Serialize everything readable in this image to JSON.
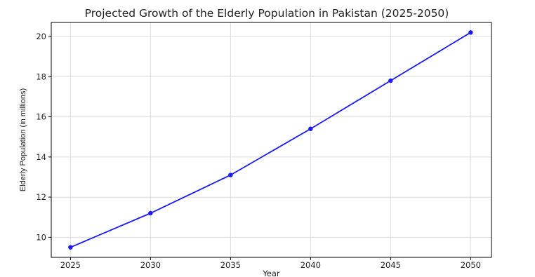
{
  "chart_data": {
    "type": "line",
    "title": "Projected Growth of the Elderly Population in Pakistan (2025-2050)",
    "xlabel": "Year",
    "ylabel": "Elderly Population (in millions)",
    "x": [
      2025,
      2030,
      2035,
      2040,
      2045,
      2050
    ],
    "x_ticks": [
      "2025",
      "2030",
      "2035",
      "2040",
      "2045",
      "2050"
    ],
    "y_ticks": [
      "10",
      "12",
      "14",
      "16",
      "18",
      "20"
    ],
    "xlim": [
      2023.8,
      2051.3
    ],
    "ylim": [
      9.0,
      20.7
    ],
    "grid": true,
    "series": [
      {
        "values": [
          9.5,
          11.2,
          13.1,
          15.4,
          17.8,
          20.2
        ],
        "color": "#1a1aff",
        "marker": "circle"
      }
    ]
  }
}
